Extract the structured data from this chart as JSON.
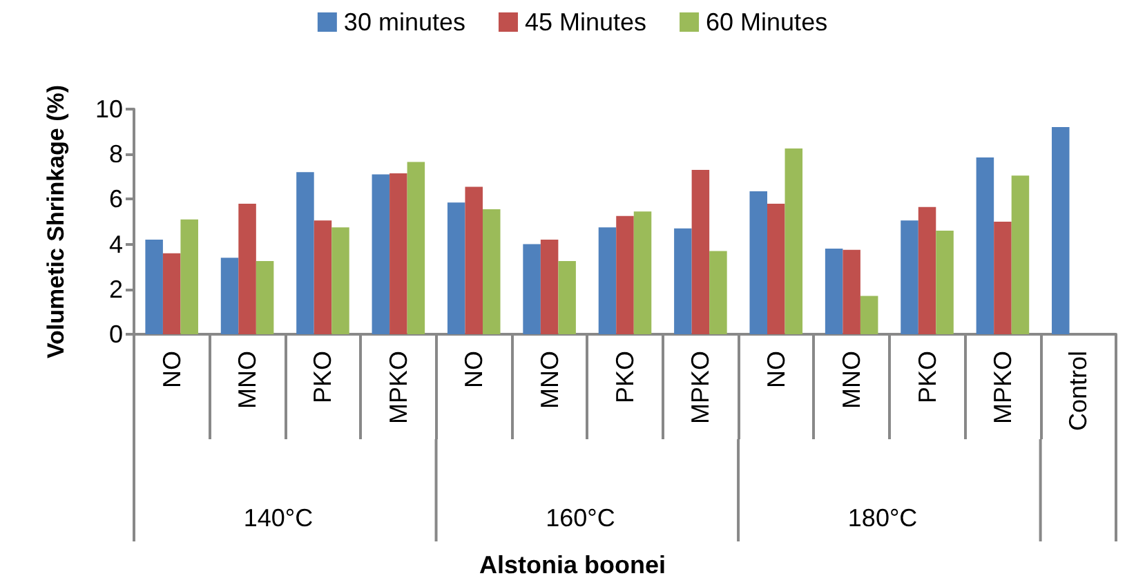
{
  "chart_data": {
    "type": "bar",
    "ylabel": "Volumetic Shrinkage (%)",
    "categories": [
      "NO",
      "MNO",
      "PKO",
      "MPKO",
      "NO",
      "MNO",
      "PKO",
      "MPKO",
      "NO",
      "MNO",
      "PKO",
      "MPKO",
      "Control"
    ],
    "series": [
      {
        "name": "30 minutes",
        "color": "#4f81bd",
        "values": [
          4.2,
          3.4,
          7.2,
          7.1,
          5.85,
          4.0,
          4.75,
          4.7,
          6.35,
          3.8,
          5.05,
          7.85,
          9.2
        ]
      },
      {
        "name": "45 Minutes",
        "color": "#c0504d",
        "values": [
          3.6,
          5.8,
          5.05,
          7.15,
          6.55,
          4.2,
          5.25,
          7.3,
          5.8,
          3.75,
          5.65,
          5.0,
          null
        ]
      },
      {
        "name": "60 Minutes",
        "color": "#9bbb59",
        "values": [
          5.1,
          3.25,
          4.75,
          7.65,
          5.55,
          3.25,
          5.45,
          3.7,
          8.25,
          1.7,
          4.6,
          7.05,
          null
        ]
      }
    ],
    "annotations": [
      "140°C",
      "160°C",
      "180°C",
      "Alstonia boonei"
    ],
    "ylim": [
      0,
      10
    ],
    "yticks": [
      0,
      2,
      4,
      6,
      8,
      10
    ],
    "grid": false,
    "legend": "top"
  }
}
